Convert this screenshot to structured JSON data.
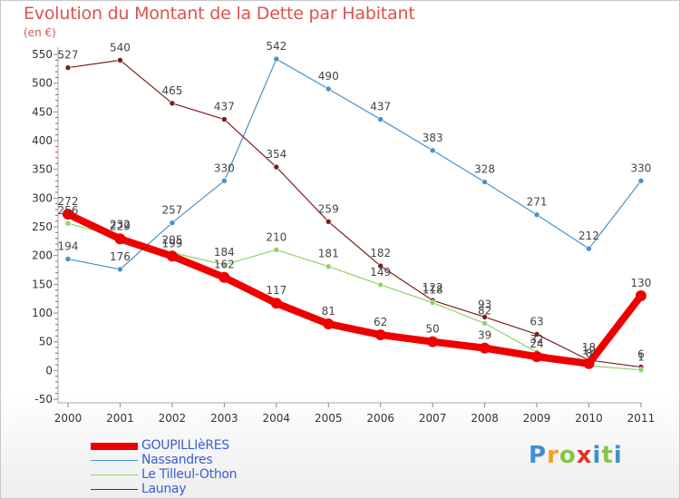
{
  "title": "Evolution du Montant de la Dette par Habitant",
  "unit_label": "(en €)",
  "logo": {
    "letters": [
      "P",
      "r",
      "o",
      "x",
      "i",
      "t",
      "i"
    ],
    "colors": [
      "#3f8fd1",
      "#f59c26",
      "#88c34a",
      "#e0352b",
      "#3f8fd1",
      "#88c34a",
      "#3f8fd1"
    ]
  },
  "chart_data": {
    "type": "line",
    "title": "Evolution du Montant de la Dette par Habitant",
    "ylabel": "(en €)",
    "xlabel": "",
    "x": [
      "2000",
      "2001",
      "2002",
      "2003",
      "2004",
      "2005",
      "2006",
      "2007",
      "2008",
      "2009",
      "2010",
      "2011"
    ],
    "ylim": [
      -50,
      550
    ],
    "yticks": [
      -50,
      0,
      50,
      100,
      150,
      200,
      250,
      300,
      350,
      400,
      450,
      500,
      550
    ],
    "grid": false,
    "legend_position": "bottom-left",
    "series": [
      {
        "name": "GOUPILLIèRES",
        "color": "#ee0000",
        "values": [
          272,
          229,
          199,
          162,
          117,
          81,
          62,
          50,
          39,
          24,
          12,
          130
        ],
        "labels": [
          "272",
          "229",
          "199",
          "162",
          "117",
          "81",
          "62",
          "50",
          "39",
          "24",
          "12",
          "130"
        ]
      },
      {
        "name": "Nassandres",
        "color": "#4a90c8",
        "values": [
          194,
          176,
          257,
          330,
          542,
          490,
          437,
          383,
          328,
          271,
          212,
          330
        ],
        "labels": [
          "194",
          "176",
          "257",
          "330",
          "542",
          "490",
          "437",
          "383",
          "328",
          "271",
          "212",
          "330"
        ]
      },
      {
        "name": "Le Tilleul-Othon",
        "color": "#8fd16a",
        "values": [
          256,
          232,
          205,
          184,
          210,
          181,
          149,
          118,
          82,
          32,
          8,
          1
        ],
        "labels": [
          "256",
          "232",
          "205",
          "184",
          "210",
          "181",
          "149",
          "118",
          "82",
          "32",
          "8",
          "1"
        ]
      },
      {
        "name": "Launay",
        "color": "#7a1e1e",
        "values": [
          527,
          540,
          465,
          437,
          354,
          259,
          182,
          122,
          93,
          63,
          18,
          6
        ],
        "labels": [
          "527",
          "540",
          "465",
          "437",
          "354",
          "259",
          "182",
          "122",
          "93",
          "63",
          "18",
          "6"
        ]
      }
    ]
  }
}
